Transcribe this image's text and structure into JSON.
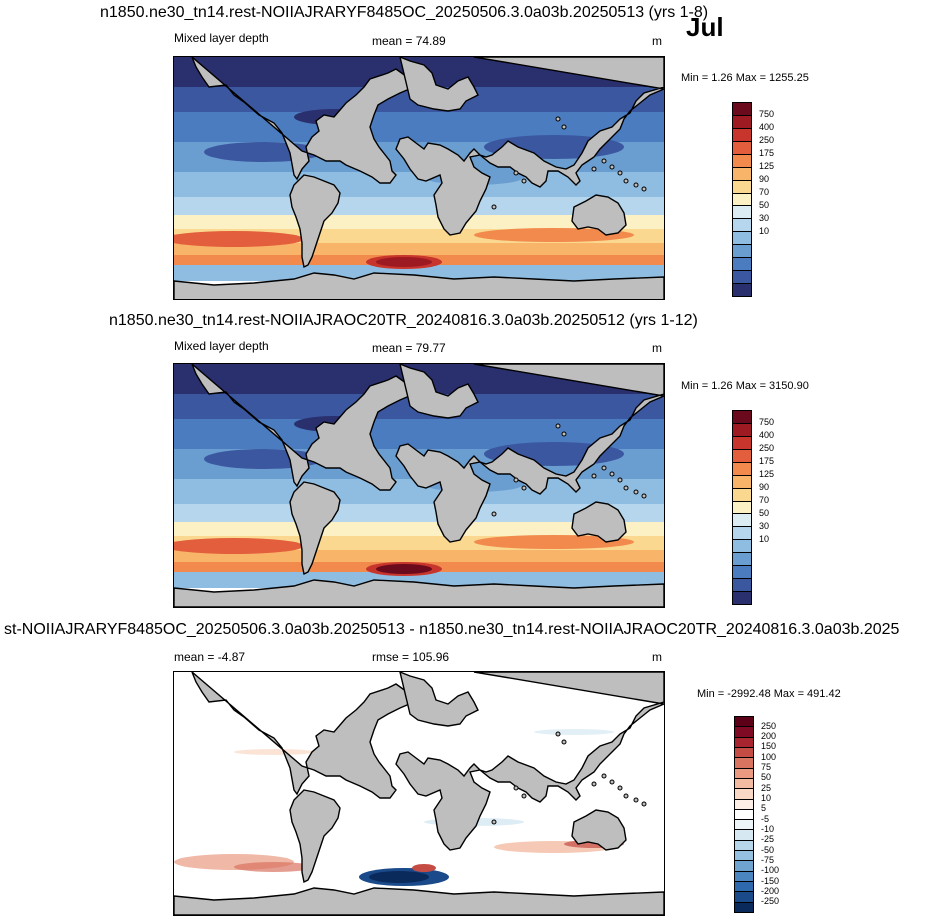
{
  "month": "Jul",
  "panels": [
    {
      "title": "n1850.ne30_tn14.rest-NOIIAJRARYF8485OC_20250506.3.0a03b.20250513 (yrs 1-8)",
      "left_label": "Mixed layer depth",
      "center_label": "mean =  74.89",
      "units": "m",
      "minmax": "Min =   1.26 Max = 1255.25",
      "colorbar": {
        "colors": [
          "#2a2f6e",
          "#3b57a0",
          "#4a7cbf",
          "#6a9dd0",
          "#8fbde1",
          "#b5d6ec",
          "#dcecf3",
          "#fbf1c4",
          "#fbd88f",
          "#f8b468",
          "#f18a4c",
          "#e25e3c",
          "#c8352c",
          "#9e1a22",
          "#6a0a1c"
        ],
        "labels": [
          "10",
          "30",
          "50",
          "70",
          "90",
          "125",
          "175",
          "250",
          "400",
          "750"
        ]
      }
    },
    {
      "title": "n1850.ne30_tn14.rest-NOIIAJRAOC20TR_20240816.3.0a03b.20250512 (yrs 1-12)",
      "left_label": "Mixed layer depth",
      "center_label": "mean =  79.77",
      "units": "m",
      "minmax": "Min =   1.26 Max = 3150.90",
      "colorbar": {
        "colors": [
          "#2a2f6e",
          "#3b57a0",
          "#4a7cbf",
          "#6a9dd0",
          "#8fbde1",
          "#b5d6ec",
          "#dcecf3",
          "#fbf1c4",
          "#fbd88f",
          "#f8b468",
          "#f18a4c",
          "#e25e3c",
          "#c8352c",
          "#9e1a22",
          "#6a0a1c"
        ],
        "labels": [
          "10",
          "30",
          "50",
          "70",
          "90",
          "125",
          "175",
          "250",
          "400",
          "750"
        ]
      }
    },
    {
      "title": "st-NOIIAJRARYF8485OC_20250506.3.0a03b.20250513 - n1850.ne30_tn14.rest-NOIIAJRAOC20TR_20240816.3.0a03b.2025",
      "left_label": "mean =  -4.87",
      "center_label": "rmse = 105.96",
      "units": "m",
      "minmax": "Min = -2992.48 Max = 491.42",
      "colorbar": {
        "colors": [
          "#0b2a5c",
          "#1a4a8a",
          "#2e68ad",
          "#4b86c1",
          "#6fa4d1",
          "#95c0e0",
          "#b8d6ea",
          "#d6e8f2",
          "#eef5f9",
          "#ffffff",
          "#fdeee6",
          "#f9d8c5",
          "#f3bca2",
          "#e99a80",
          "#d97461",
          "#c54c45",
          "#a82530",
          "#7e0a23",
          "#5c0018"
        ],
        "labels": [
          "-250",
          "-200",
          "-150",
          "-100",
          "-75",
          "-50",
          "-25",
          "-10",
          "-5",
          "5",
          "10",
          "25",
          "50",
          "75",
          "100",
          "150",
          "200",
          "250"
        ]
      }
    }
  ]
}
